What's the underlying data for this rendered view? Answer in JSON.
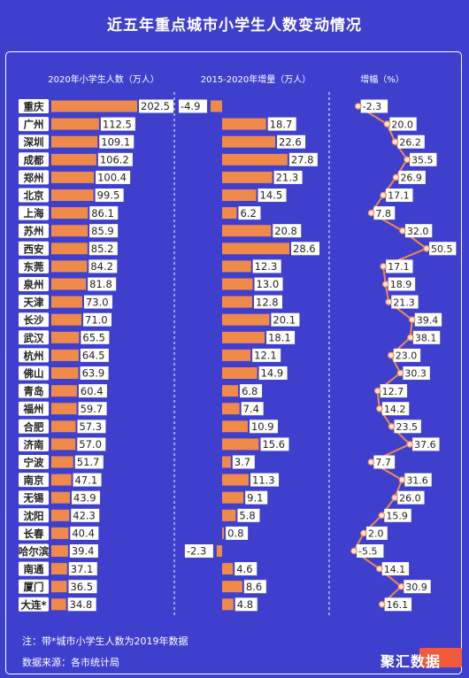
{
  "title": "近五年重点城市小学生人数变动情况",
  "headers": {
    "students": "2020年小学生人数（万人）",
    "increase": "2015-2020年增量（万人）",
    "growth": "增幅（%）"
  },
  "footnote": "注：带*城市小学生人数为2019年数据",
  "source": "数据来源：各市统计局",
  "logo": "聚汇数据",
  "colors": {
    "background": "#3f3fcd",
    "bar": "#f08a4b",
    "line": "#f08a4b",
    "marker": "#fde8d8",
    "label_bg": "#ffffff",
    "text": "#ffffff",
    "value_text": "#222222",
    "logo_bg": "#f25a3c"
  },
  "chart_data": {
    "type": "bar",
    "categories": [
      "重庆",
      "广州",
      "深圳",
      "成都",
      "郑州",
      "北京",
      "上海",
      "苏州",
      "西安",
      "东莞",
      "泉州",
      "天津",
      "长沙",
      "武汉",
      "杭州",
      "佛山",
      "青岛",
      "福州",
      "合肥",
      "济南",
      "宁波",
      "南京",
      "无锡",
      "沈阳",
      "长春",
      "哈尔滨",
      "南通",
      "厦门",
      "大连*"
    ],
    "series": [
      {
        "name": "2020年小学生人数（万人）",
        "values": [
          202.5,
          112.5,
          109.1,
          106.2,
          100.4,
          99.5,
          86.1,
          85.9,
          85.2,
          84.2,
          81.8,
          73.0,
          71.0,
          65.5,
          64.5,
          63.9,
          60.4,
          59.7,
          57.3,
          57.0,
          51.7,
          47.1,
          43.9,
          42.3,
          40.4,
          39.4,
          37.1,
          36.5,
          34.8
        ]
      },
      {
        "name": "2015-2020年增量（万人）",
        "values": [
          -4.9,
          18.7,
          22.6,
          27.8,
          21.3,
          14.5,
          6.2,
          20.8,
          28.6,
          12.3,
          13.0,
          12.8,
          20.1,
          18.1,
          12.1,
          14.9,
          6.8,
          7.4,
          10.9,
          15.6,
          3.7,
          11.3,
          9.1,
          5.8,
          0.8,
          -2.3,
          4.6,
          8.6,
          4.8
        ]
      },
      {
        "name": "增幅（%）",
        "type": "line",
        "values": [
          -2.3,
          20.0,
          26.2,
          35.5,
          26.9,
          17.1,
          7.8,
          32.0,
          50.5,
          17.1,
          18.9,
          21.3,
          39.4,
          38.1,
          23.0,
          30.3,
          12.7,
          14.2,
          23.5,
          37.6,
          7.7,
          31.6,
          26.0,
          15.9,
          2.0,
          -5.5,
          14.1,
          30.9,
          16.1
        ]
      }
    ],
    "value_labels": {
      "students": [
        "202.5",
        "112.5",
        "109.1",
        "106.2",
        "100.4",
        "99.5",
        "86.1",
        "85.9",
        "85.2",
        "84.2",
        "81.8",
        "73.0",
        "71.0",
        "65.5",
        "64.5",
        "63.9",
        "60.4",
        "59.7",
        "57.3",
        "57.0",
        "51.7",
        "47.1",
        "43.9",
        "42.3",
        "40.4",
        "39.4",
        "37.1",
        "36.5",
        "34.8"
      ],
      "increase": [
        "-4.9",
        "18.7",
        "22.6",
        "27.8",
        "21.3",
        "14.5",
        "6.2",
        "20.8",
        "28.6",
        "12.3",
        "13.0",
        "12.8",
        "20.1",
        "18.1",
        "12.1",
        "14.9",
        "6.8",
        "7.4",
        "10.9",
        "15.6",
        "3.7",
        "11.3",
        "9.1",
        "5.8",
        "0.8",
        "-2.3",
        "4.6",
        "8.6",
        "4.8"
      ],
      "growth": [
        "-2.3",
        "20.0",
        "26.2",
        "35.5",
        "26.9",
        "17.1",
        "7.8",
        "32.0",
        "50.5",
        "17.1",
        "18.9",
        "21.3",
        "39.4",
        "38.1",
        "23.0",
        "30.3",
        "12.7",
        "14.2",
        "23.5",
        "37.6",
        "7.7",
        "31.6",
        "26.0",
        "15.9",
        "2.0",
        "-5.5",
        "14.1",
        "30.9",
        "16.1"
      ]
    },
    "separators": "dashed vertical lines between panels",
    "grid": false
  }
}
